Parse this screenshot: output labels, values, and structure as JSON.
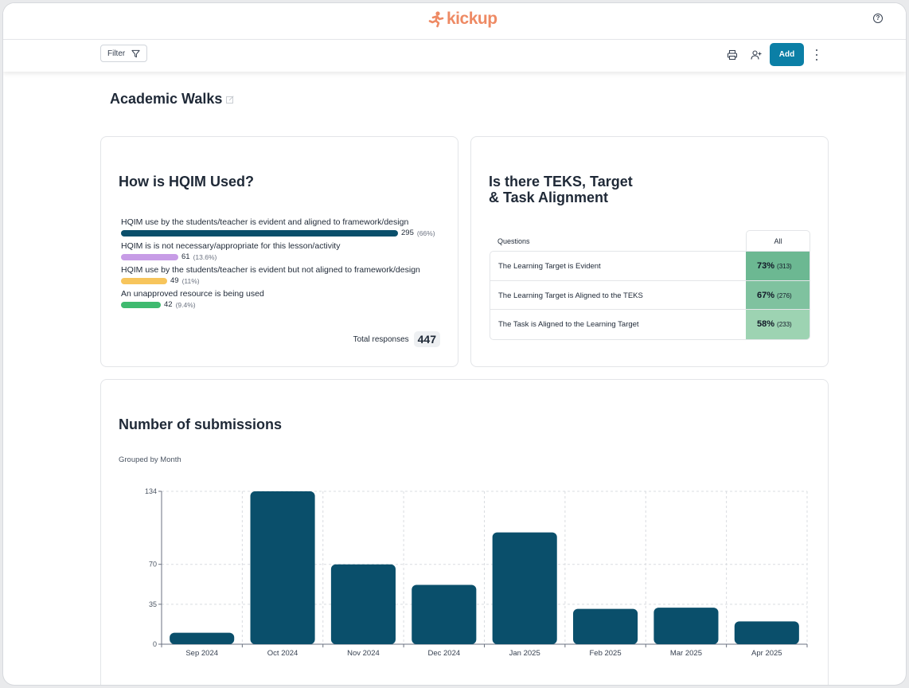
{
  "header": {
    "logo_text": "kickup",
    "brand_color": "#ee8a64"
  },
  "toolbar": {
    "filter_label": "Filter",
    "add_label": "Add",
    "accent": "#0b7fa6"
  },
  "page": {
    "title": "Academic Walks"
  },
  "hqim": {
    "title": "How is HQIM Used?",
    "total_label": "Total responses",
    "total_value": "447",
    "items": [
      {
        "label": "HQIM use by the students/teacher is evident and aligned to framework/design",
        "count": "295",
        "pct": "(66%)",
        "fraction": 0.66,
        "color": "#0a4f6b"
      },
      {
        "label": "HQIM is is not necessary/appropriate for this lesson/activity",
        "count": "61",
        "pct": "(13.6%)",
        "fraction": 0.136,
        "color": "#c79ce6"
      },
      {
        "label": "HQIM use by the students/teacher is evident but not aligned to framework/design",
        "count": "49",
        "pct": "(11%)",
        "fraction": 0.11,
        "color": "#f7c55c"
      },
      {
        "label": "An unapproved resource is being used",
        "count": "42",
        "pct": "(9.4%)",
        "fraction": 0.094,
        "color": "#3fba6f"
      }
    ]
  },
  "teks": {
    "title_line1": "Is there TEKS, Target",
    "title_line2": "& Task Alignment",
    "col_questions": "Questions",
    "col_all": "All",
    "rows": [
      {
        "question": "The Learning Target is Evident",
        "pct": "73%",
        "n": "(313)",
        "color": "#6cb892"
      },
      {
        "question": "The Learning Target is Aligned to the TEKS",
        "pct": "67%",
        "n": "(276)",
        "color": "#7fc29f"
      },
      {
        "question": "The Task is Aligned to the Learning Target",
        "pct": "58%",
        "n": "(233)",
        "color": "#9dd3b2"
      }
    ]
  },
  "submissions": {
    "title": "Number of submissions",
    "subtitle": "Grouped by Month",
    "chart_data": {
      "type": "bar",
      "categories": [
        "Sep 2024",
        "Oct 2024",
        "Nov 2024",
        "Dec 2024",
        "Jan 2025",
        "Feb 2025",
        "Mar 2025",
        "Apr 2025"
      ],
      "values": [
        10,
        134,
        70,
        52,
        98,
        31,
        32,
        20
      ],
      "yticks": [
        0,
        35,
        70,
        134
      ],
      "ylim": [
        0,
        134
      ],
      "bar_color": "#0a4f6b",
      "grid": true,
      "title": "Number of submissions",
      "xlabel": "",
      "ylabel": ""
    }
  }
}
